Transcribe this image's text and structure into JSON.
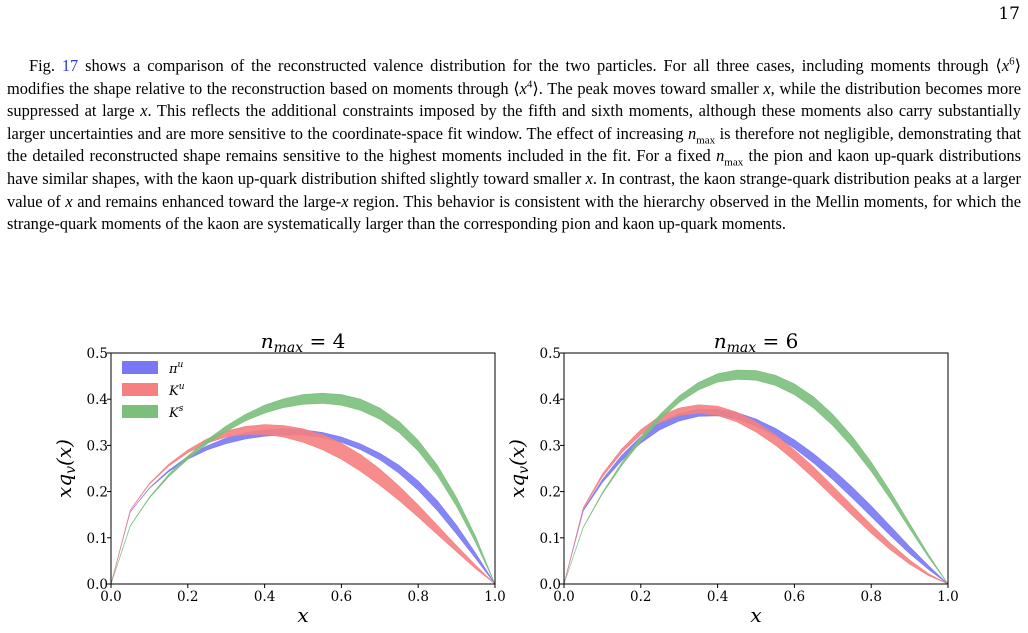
{
  "page_number": "17",
  "paragraph": {
    "s1_pre": "Fig. ",
    "s1_ref": "17",
    "s1_post": " shows a comparison of the reconstructed valence distribution for the two particles. For all three cases, including moments through ⟨",
    "x": "x",
    "sup6": "6",
    "s2": "⟩ modifies the shape relative to the reconstruction based on moments through ⟨",
    "sup4": "4",
    "s3": "⟩. The peak moves toward smaller ",
    "s4": ", while the distribution becomes more suppressed at large ",
    "s5": ". This reflects the additional constraints imposed by the fifth and sixth moments, although these moments also carry substantially larger uncertainties and are more sensitive to the coordinate-space fit window. The effect of increasing ",
    "n": "n",
    "max": "max",
    "s6": " is therefore not negligible, demonstrating that the detailed reconstructed shape remains sensitive to the highest moments included in the fit. For a fixed ",
    "s7": " the pion and kaon up-quark distributions have similar shapes, with the kaon up-quark distribution shifted slightly toward smaller ",
    "s8": ". In contrast, the kaon strange-quark distribution peaks at a larger value of ",
    "s9": " and remains enhanced toward the large-",
    "s10": " region. This behavior is consistent with the hierarchy observed in the Mellin moments, for which the strange-quark moments of the kaon are systematically larger than the corresponding pion and kaon up-quark moments."
  },
  "legend": {
    "pi_u": "π",
    "pi_u_sup": "u",
    "K_u": "K",
    "K_u_sup": "u",
    "K_s": "K",
    "K_s_sup": "s"
  },
  "colors": {
    "pi_u": "#7878f5",
    "K_u": "#f58080",
    "K_s": "#7bbf7b"
  },
  "chart_data": [
    {
      "type": "area",
      "title_n": "n",
      "title_sub": "max",
      "title_rest": " = 4",
      "xlabel": "x",
      "ylabel_x": "xq",
      "ylabel_sub": "v",
      "ylabel_rest": "(x)",
      "xlim": [
        0.0,
        1.0
      ],
      "ylim": [
        0.0,
        0.5
      ],
      "xticks": [
        "0.0",
        "0.2",
        "0.4",
        "0.6",
        "0.8",
        "1.0"
      ],
      "yticks": [
        "0.0",
        "0.1",
        "0.2",
        "0.3",
        "0.4",
        "0.5"
      ],
      "legend_position": "top-left",
      "series": [
        {
          "key": "pi_u",
          "x": [
            0.0,
            0.05,
            0.1,
            0.15,
            0.2,
            0.25,
            0.3,
            0.35,
            0.4,
            0.45,
            0.5,
            0.55,
            0.6,
            0.65,
            0.7,
            0.75,
            0.8,
            0.85,
            0.9,
            0.95,
            1.0
          ],
          "lower": [
            0.0,
            0.156,
            0.207,
            0.243,
            0.27,
            0.29,
            0.304,
            0.314,
            0.32,
            0.323,
            0.322,
            0.317,
            0.307,
            0.291,
            0.269,
            0.24,
            0.203,
            0.159,
            0.108,
            0.055,
            0.0
          ],
          "upper": [
            0.0,
            0.156,
            0.208,
            0.246,
            0.276,
            0.299,
            0.316,
            0.327,
            0.334,
            0.336,
            0.334,
            0.328,
            0.318,
            0.303,
            0.283,
            0.257,
            0.223,
            0.18,
            0.127,
            0.066,
            0.0
          ]
        },
        {
          "key": "K_u",
          "x": [
            0.0,
            0.05,
            0.1,
            0.15,
            0.2,
            0.25,
            0.3,
            0.35,
            0.4,
            0.45,
            0.5,
            0.55,
            0.6,
            0.65,
            0.7,
            0.75,
            0.8,
            0.85,
            0.9,
            0.95,
            1.0
          ],
          "lower": [
            0.0,
            0.159,
            0.216,
            0.255,
            0.284,
            0.305,
            0.318,
            0.324,
            0.324,
            0.318,
            0.307,
            0.291,
            0.27,
            0.244,
            0.214,
            0.181,
            0.145,
            0.107,
            0.07,
            0.033,
            0.0
          ],
          "upper": [
            0.0,
            0.16,
            0.218,
            0.259,
            0.29,
            0.314,
            0.331,
            0.341,
            0.345,
            0.343,
            0.336,
            0.323,
            0.305,
            0.28,
            0.249,
            0.212,
            0.171,
            0.127,
            0.083,
            0.04,
            0.0
          ]
        },
        {
          "key": "K_s",
          "x": [
            0.0,
            0.05,
            0.1,
            0.15,
            0.2,
            0.25,
            0.3,
            0.35,
            0.4,
            0.45,
            0.5,
            0.55,
            0.6,
            0.65,
            0.7,
            0.75,
            0.8,
            0.85,
            0.9,
            0.95,
            1.0
          ],
          "lower": [
            0.0,
            0.125,
            0.186,
            0.232,
            0.27,
            0.303,
            0.33,
            0.353,
            0.37,
            0.382,
            0.389,
            0.391,
            0.387,
            0.376,
            0.357,
            0.328,
            0.288,
            0.235,
            0.168,
            0.089,
            0.0
          ],
          "upper": [
            0.0,
            0.126,
            0.188,
            0.237,
            0.277,
            0.312,
            0.342,
            0.367,
            0.387,
            0.401,
            0.41,
            0.413,
            0.41,
            0.4,
            0.381,
            0.352,
            0.311,
            0.257,
            0.187,
            0.102,
            0.0
          ]
        }
      ]
    },
    {
      "type": "area",
      "title_n": "n",
      "title_sub": "max",
      "title_rest": " = 6",
      "xlabel": "x",
      "ylabel_x": "xq",
      "ylabel_sub": "v",
      "ylabel_rest": "(x)",
      "xlim": [
        0.0,
        1.0
      ],
      "ylim": [
        0.0,
        0.5
      ],
      "xticks": [
        "0.0",
        "0.2",
        "0.4",
        "0.6",
        "0.8",
        "1.0"
      ],
      "yticks": [
        "0.0",
        "0.1",
        "0.2",
        "0.3",
        "0.4",
        "0.5"
      ],
      "legend_position": "none",
      "series": [
        {
          "key": "pi_u",
          "x": [
            0.0,
            0.05,
            0.1,
            0.15,
            0.2,
            0.25,
            0.3,
            0.35,
            0.4,
            0.45,
            0.5,
            0.55,
            0.6,
            0.65,
            0.7,
            0.75,
            0.8,
            0.85,
            0.9,
            0.95,
            1.0
          ],
          "lower": [
            0.0,
            0.158,
            0.22,
            0.267,
            0.305,
            0.334,
            0.353,
            0.363,
            0.364,
            0.357,
            0.342,
            0.321,
            0.294,
            0.262,
            0.226,
            0.187,
            0.146,
            0.105,
            0.066,
            0.031,
            0.0
          ],
          "upper": [
            0.0,
            0.16,
            0.226,
            0.278,
            0.319,
            0.35,
            0.369,
            0.378,
            0.378,
            0.371,
            0.357,
            0.337,
            0.312,
            0.282,
            0.248,
            0.21,
            0.169,
            0.125,
            0.081,
            0.039,
            0.0
          ]
        },
        {
          "key": "K_u",
          "x": [
            0.0,
            0.05,
            0.1,
            0.15,
            0.2,
            0.25,
            0.3,
            0.35,
            0.4,
            0.45,
            0.5,
            0.55,
            0.6,
            0.65,
            0.7,
            0.75,
            0.8,
            0.85,
            0.9,
            0.95,
            1.0
          ],
          "lower": [
            0.0,
            0.163,
            0.232,
            0.284,
            0.323,
            0.35,
            0.365,
            0.37,
            0.365,
            0.351,
            0.329,
            0.301,
            0.267,
            0.229,
            0.189,
            0.149,
            0.11,
            0.074,
            0.043,
            0.018,
            0.0
          ],
          "upper": [
            0.0,
            0.165,
            0.238,
            0.292,
            0.334,
            0.364,
            0.381,
            0.388,
            0.385,
            0.372,
            0.351,
            0.323,
            0.29,
            0.253,
            0.212,
            0.17,
            0.128,
            0.088,
            0.052,
            0.022,
            0.0
          ]
        },
        {
          "key": "K_s",
          "x": [
            0.0,
            0.05,
            0.1,
            0.15,
            0.2,
            0.25,
            0.3,
            0.35,
            0.4,
            0.45,
            0.5,
            0.55,
            0.6,
            0.65,
            0.7,
            0.75,
            0.8,
            0.85,
            0.9,
            0.95,
            1.0
          ],
          "lower": [
            0.0,
            0.122,
            0.195,
            0.256,
            0.309,
            0.356,
            0.393,
            0.42,
            0.437,
            0.443,
            0.441,
            0.43,
            0.41,
            0.381,
            0.343,
            0.297,
            0.244,
            0.184,
            0.12,
            0.057,
            0.0
          ],
          "upper": [
            0.0,
            0.123,
            0.198,
            0.262,
            0.318,
            0.367,
            0.407,
            0.436,
            0.455,
            0.463,
            0.462,
            0.452,
            0.433,
            0.405,
            0.367,
            0.32,
            0.264,
            0.2,
            0.131,
            0.063,
            0.0
          ]
        }
      ]
    }
  ]
}
